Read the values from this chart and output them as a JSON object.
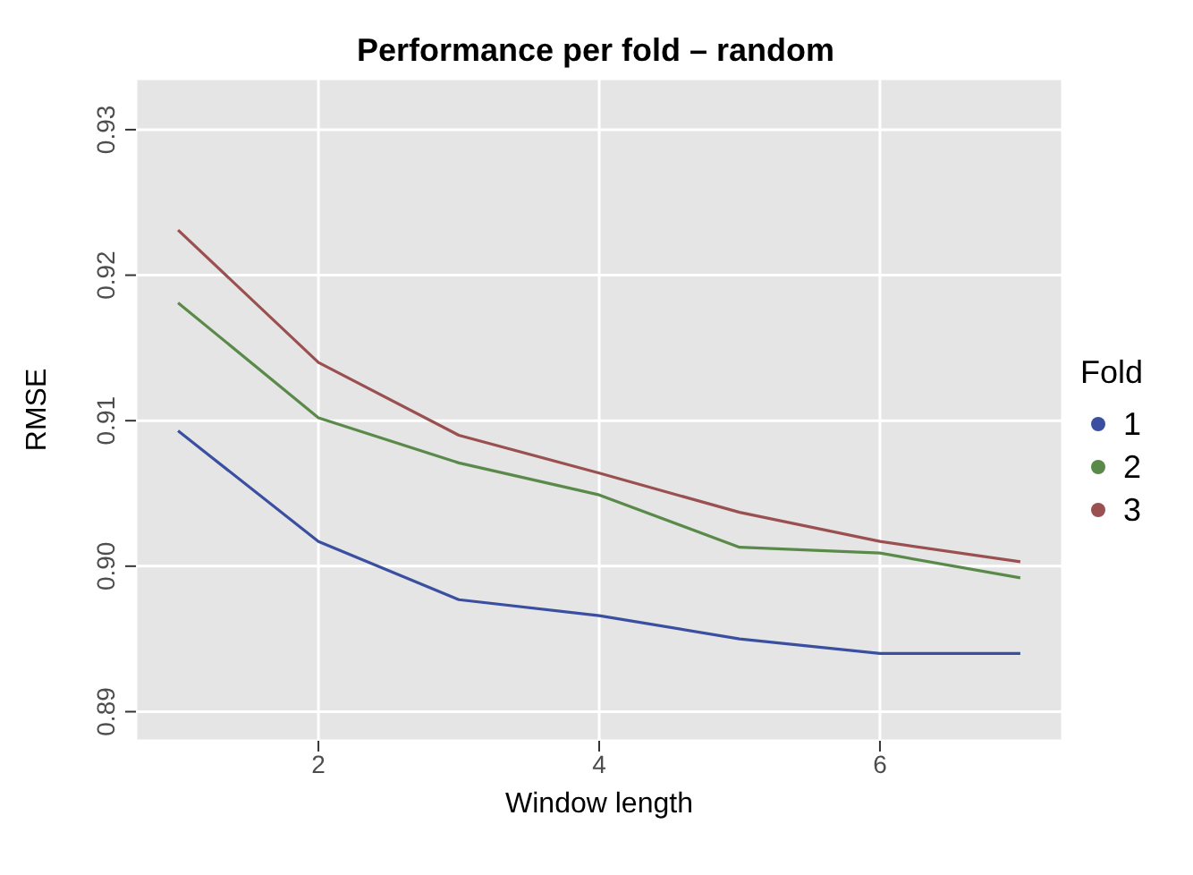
{
  "chart_data": {
    "type": "line",
    "title": "Performance per fold – random",
    "xlabel": "Window length",
    "ylabel": "RMSE",
    "legend_title": "Fold",
    "x": [
      1,
      2,
      3,
      4,
      5,
      6,
      7
    ],
    "series": [
      {
        "name": "1",
        "color": "#3a4fa0",
        "values": [
          0.9093,
          0.9017,
          0.8977,
          0.8966,
          0.895,
          0.894,
          0.894
        ]
      },
      {
        "name": "2",
        "color": "#5a8a4a",
        "values": [
          0.9181,
          0.9102,
          0.9071,
          0.9049,
          0.9013,
          0.9009,
          0.8992
        ]
      },
      {
        "name": "3",
        "color": "#9a5050",
        "values": [
          0.9231,
          0.914,
          0.909,
          0.9064,
          0.9037,
          0.9017,
          0.9003
        ]
      }
    ],
    "xlim": [
      0.7,
      7.3
    ],
    "xticks": [
      2,
      4,
      6
    ],
    "ylim": [
      0.888,
      0.9335
    ],
    "yticks": [
      {
        "value": 0.89,
        "label": "0.89"
      },
      {
        "value": 0.9,
        "label": "0.90"
      },
      {
        "value": 0.91,
        "label": "0.91"
      },
      {
        "value": 0.92,
        "label": "0.92"
      },
      {
        "value": 0.93,
        "label": "0.93"
      }
    ],
    "grid": true,
    "legend": "right",
    "marker": "none",
    "line_style": "solid"
  }
}
